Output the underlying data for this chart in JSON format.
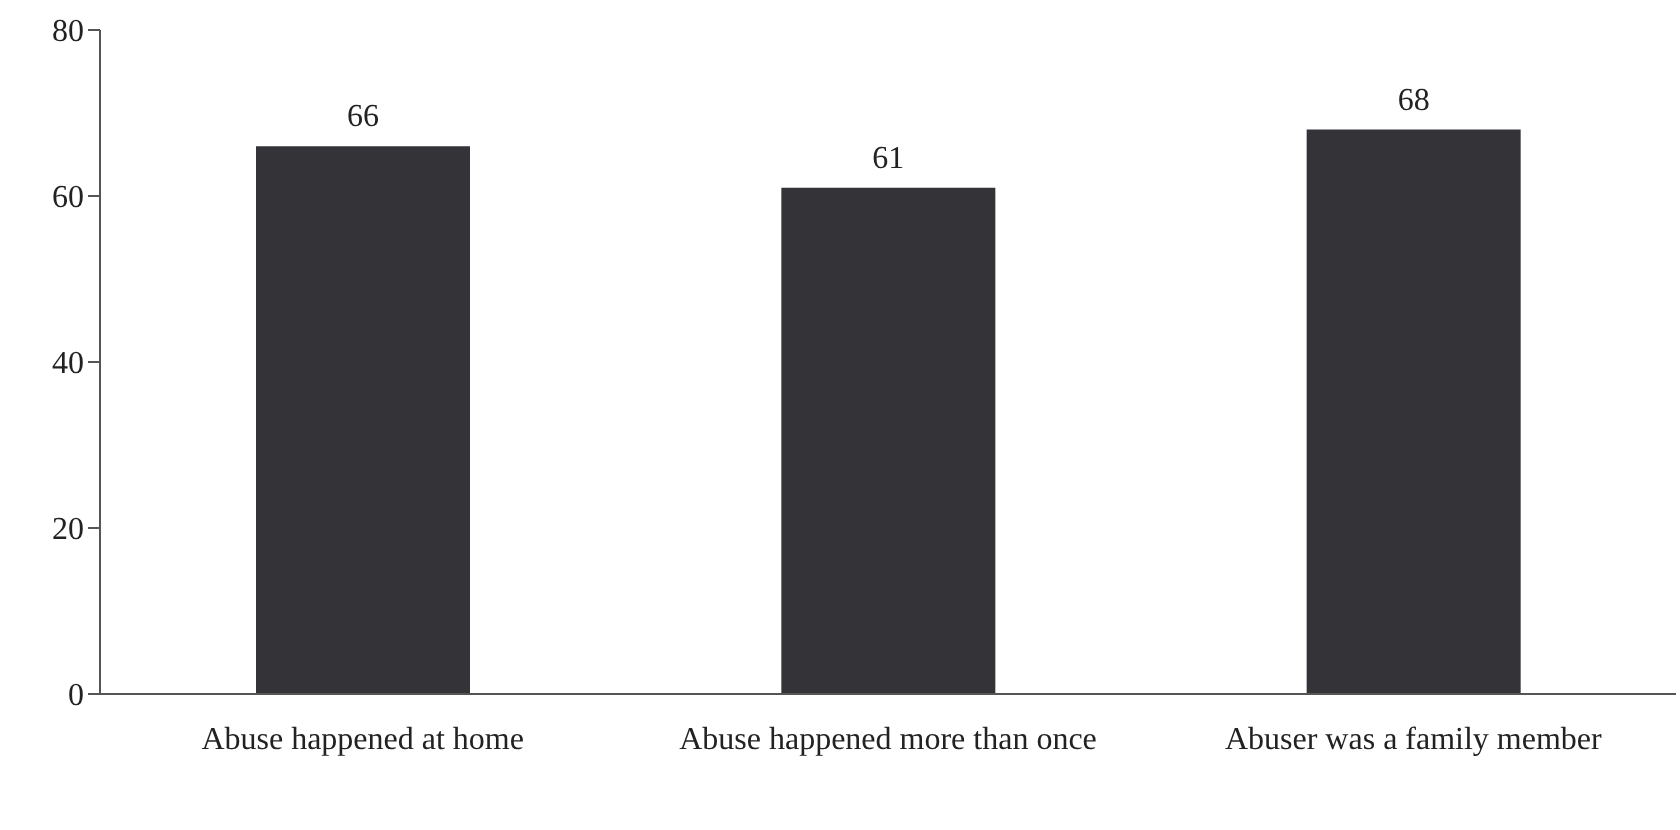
{
  "chart_data": {
    "type": "bar",
    "categories": [
      "Abuse happened at home",
      "Abuse happened more than once",
      "Abuser was a family member"
    ],
    "values": [
      66,
      61,
      68
    ],
    "color": "#333338",
    "ylim": [
      0,
      80
    ],
    "yticks": [
      0,
      20,
      40,
      60,
      80
    ],
    "grid": false,
    "legend": false,
    "data_labels": true
  }
}
